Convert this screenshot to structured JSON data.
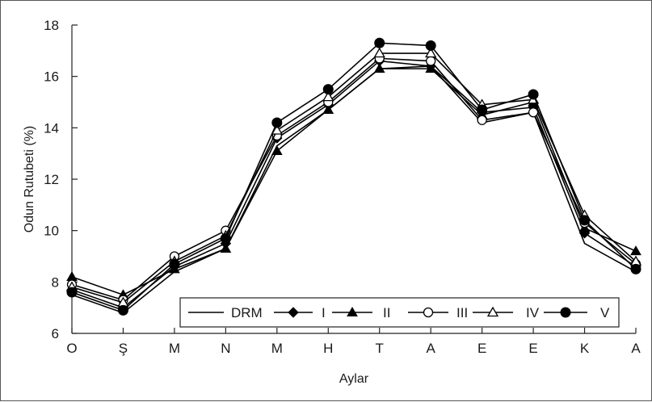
{
  "chart_data": {
    "type": "line",
    "title": "",
    "xlabel": "Aylar",
    "ylabel": "Odun Rutubeti (%)",
    "ylim": [
      6,
      18
    ],
    "yticks": [
      6,
      8,
      10,
      12,
      14,
      16,
      18
    ],
    "categories": [
      "O",
      "Ş",
      "M",
      "N",
      "M",
      "H",
      "T",
      "A",
      "E",
      "E",
      "K",
      "A"
    ],
    "grid": false,
    "legend_position": "bottom-right",
    "series": [
      {
        "name": "DRM",
        "marker": "none",
        "values": [
          7.5,
          6.8,
          8.4,
          9.3,
          13.3,
          14.7,
          16.3,
          16.4,
          14.2,
          14.6,
          9.5,
          8.4
        ]
      },
      {
        "name": "I",
        "marker": "diamond",
        "values": [
          7.7,
          7.0,
          8.6,
          9.5,
          13.6,
          14.9,
          16.6,
          16.4,
          14.6,
          14.8,
          9.9,
          8.6
        ]
      },
      {
        "name": "II",
        "marker": "triangle-filled",
        "values": [
          8.2,
          7.5,
          8.5,
          9.3,
          13.1,
          14.7,
          16.3,
          16.3,
          14.5,
          15.0,
          10.1,
          9.2
        ]
      },
      {
        "name": "III",
        "marker": "circle-open",
        "values": [
          7.9,
          7.3,
          9.0,
          10.0,
          13.7,
          15.0,
          16.7,
          16.6,
          14.3,
          14.6,
          10.3,
          8.7
        ]
      },
      {
        "name": "IV",
        "marker": "triangle-open",
        "values": [
          7.8,
          7.2,
          8.8,
          9.8,
          13.9,
          15.2,
          16.9,
          16.9,
          14.9,
          15.1,
          10.6,
          8.8
        ]
      },
      {
        "name": "V",
        "marker": "circle-filled",
        "values": [
          7.6,
          6.9,
          8.7,
          9.7,
          14.2,
          15.5,
          17.3,
          17.2,
          14.7,
          15.3,
          10.4,
          8.5
        ]
      }
    ]
  }
}
